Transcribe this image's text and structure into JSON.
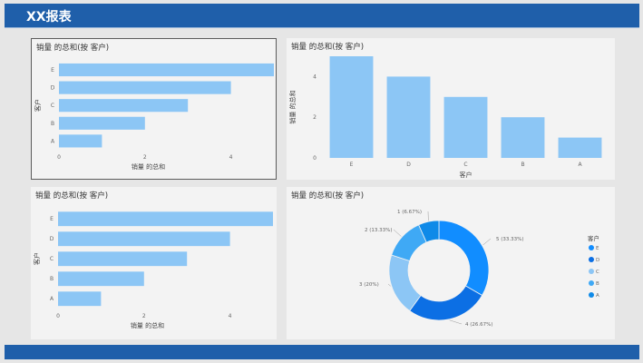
{
  "header": {
    "title": "XX报表"
  },
  "colors": {
    "header": "#1f5faa",
    "bar": "#8cc6f5",
    "panel": "#f3f3f3"
  },
  "charts": [
    {
      "chart_data": {
        "type": "bar",
        "orientation": "horizontal",
        "title": "销量 的总和(按 客户)",
        "xlabel": "销量 的总和",
        "ylabel": "客户",
        "categories": [
          "E",
          "D",
          "C",
          "B",
          "A"
        ],
        "values": [
          5,
          4,
          3,
          2,
          1
        ],
        "xticks": [
          "0",
          "2",
          "4"
        ],
        "xlim": [
          0,
          5
        ],
        "grid": false
      }
    },
    {
      "chart_data": {
        "type": "bar",
        "orientation": "vertical",
        "title": "销量 的总和(按 客户)",
        "xlabel": "客户",
        "ylabel": "销量 的总和",
        "categories": [
          "E",
          "D",
          "C",
          "B",
          "A"
        ],
        "values": [
          5,
          4,
          3,
          2,
          1
        ],
        "yticks": [
          "0",
          "2",
          "4"
        ],
        "ylim": [
          0,
          5
        ],
        "grid": false
      }
    },
    {
      "chart_data": {
        "type": "bar",
        "orientation": "horizontal",
        "title": "销量 的总和(按 客户)",
        "xlabel": "销量 的总和",
        "ylabel": "客户",
        "categories": [
          "E",
          "D",
          "C",
          "B",
          "A"
        ],
        "values": [
          5,
          4,
          3,
          2,
          1
        ],
        "xticks": [
          "0",
          "2",
          "4"
        ],
        "xlim": [
          0,
          5
        ],
        "grid": false
      }
    },
    {
      "chart_data": {
        "type": "pie",
        "donut": true,
        "title": "销量 的总和(按 客户)",
        "legend_title": "客户",
        "legend_position": "right",
        "slices": [
          {
            "label": "E",
            "value": 5,
            "text": "5 (33.33%)",
            "color": "#118dff"
          },
          {
            "label": "D",
            "value": 4,
            "text": "4 (26.67%)",
            "color": "#0c6fe4"
          },
          {
            "label": "C",
            "value": 3,
            "text": "3 (20%)",
            "color": "#8cc6f5"
          },
          {
            "label": "B",
            "value": 2,
            "text": "2 (13.33%)",
            "color": "#3fa9f5"
          },
          {
            "label": "A",
            "value": 1,
            "text": "1 (6.67%)",
            "color": "#0f8ae8"
          }
        ]
      }
    }
  ]
}
